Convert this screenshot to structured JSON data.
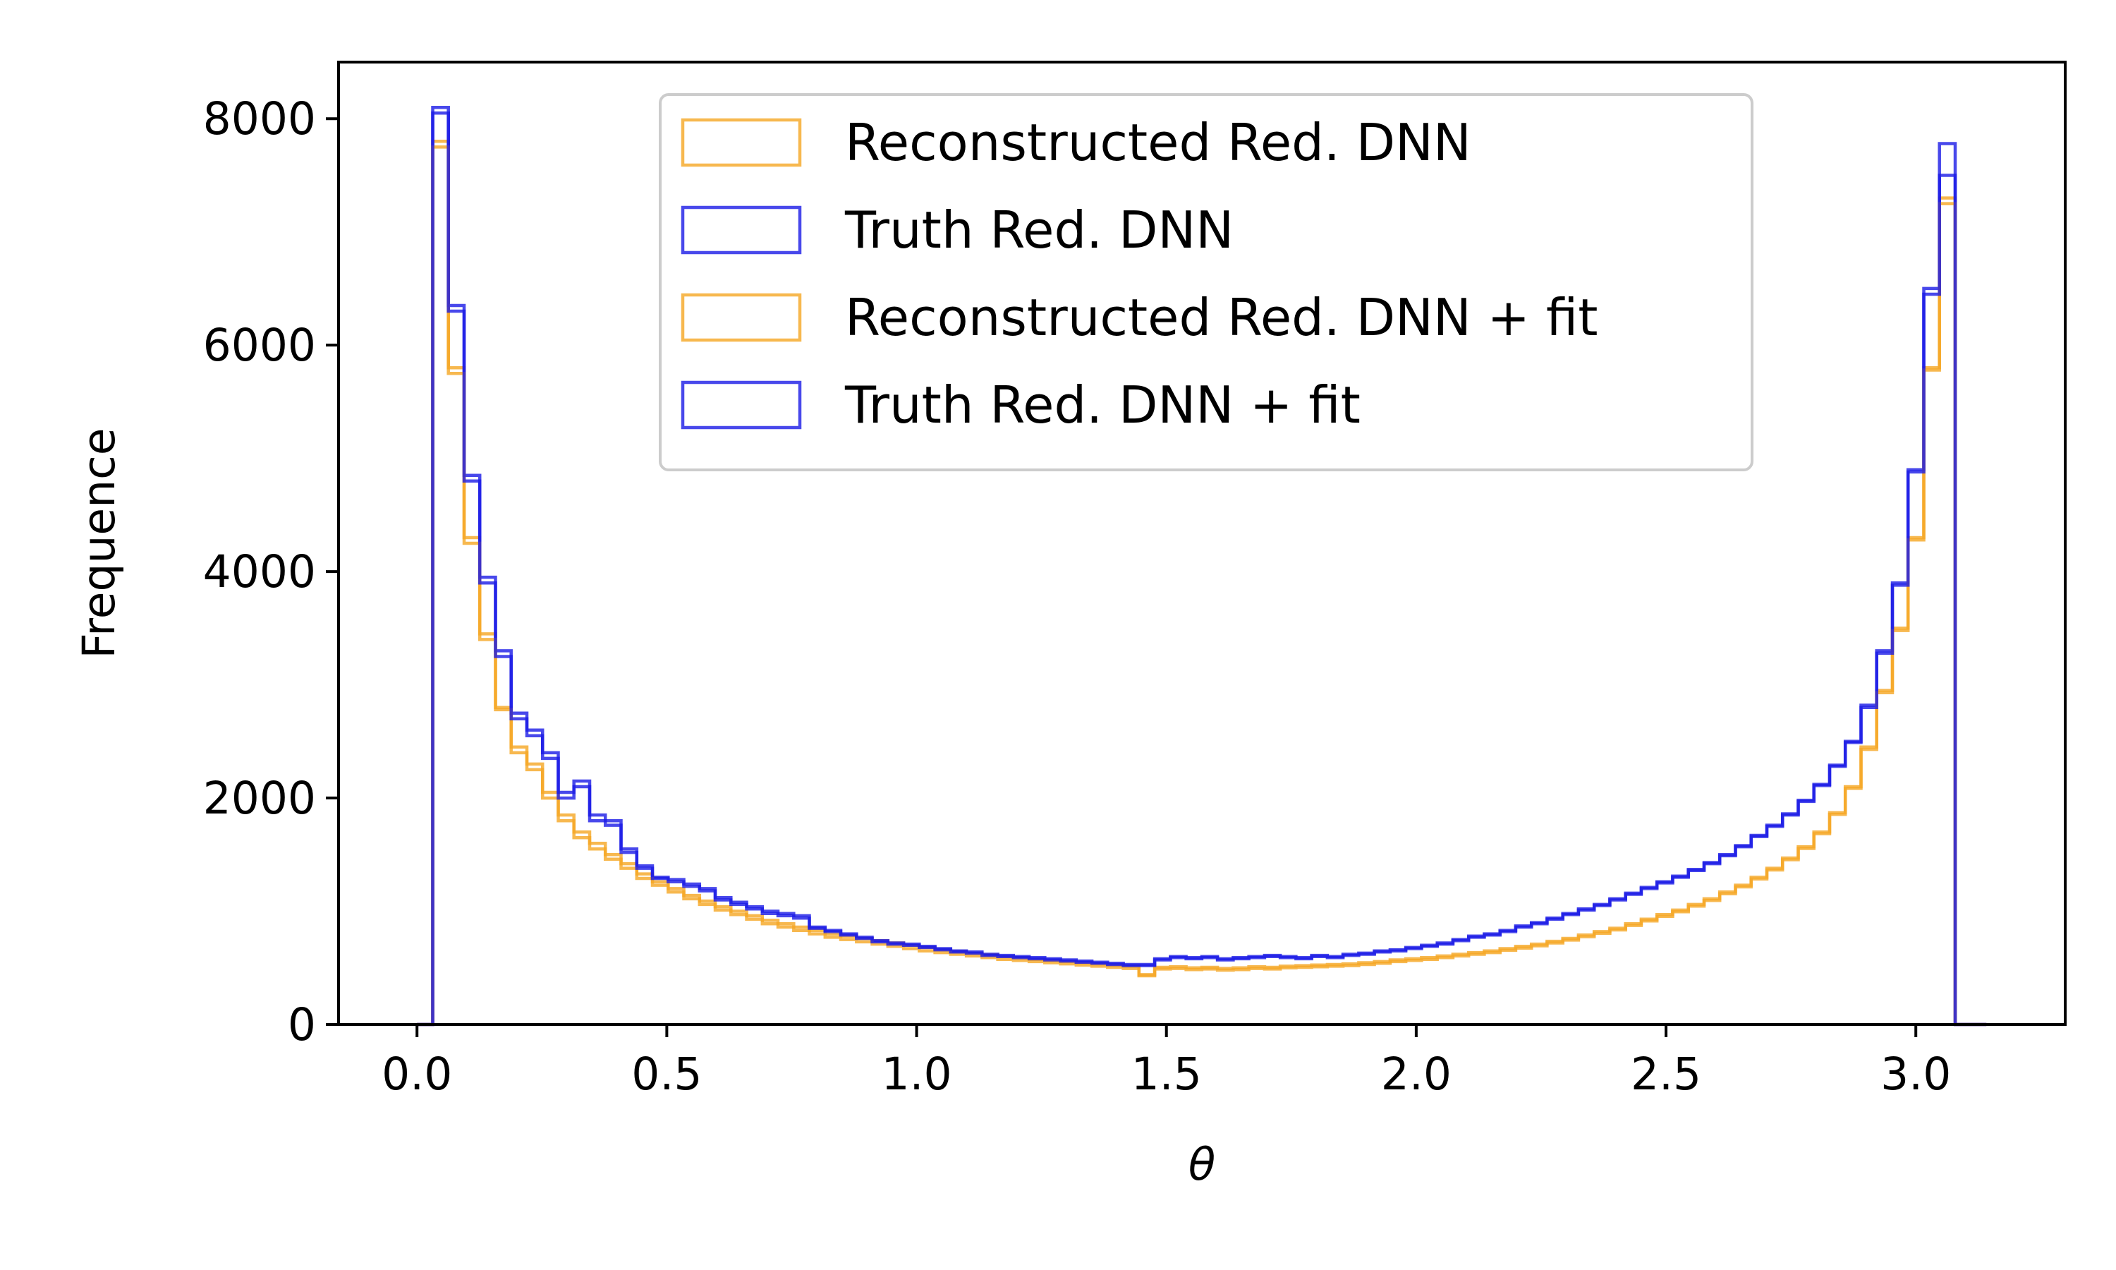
{
  "chart_data": {
    "type": "histogram-step",
    "xlabel": "θ",
    "ylabel": "Frequence",
    "xlim": [
      -0.157,
      3.299
    ],
    "ylim": [
      0,
      8500
    ],
    "xticks": [
      {
        "value": 0.0,
        "label": "0.0"
      },
      {
        "value": 0.5,
        "label": "0.5"
      },
      {
        "value": 1.0,
        "label": "1.0"
      },
      {
        "value": 1.5,
        "label": "1.5"
      },
      {
        "value": 2.0,
        "label": "2.0"
      },
      {
        "value": 2.5,
        "label": "2.5"
      },
      {
        "value": 3.0,
        "label": "3.0"
      }
    ],
    "yticks": [
      {
        "value": 0,
        "label": "0"
      },
      {
        "value": 2000,
        "label": "2000"
      },
      {
        "value": 4000,
        "label": "4000"
      },
      {
        "value": 6000,
        "label": "6000"
      },
      {
        "value": 8000,
        "label": "8000"
      }
    ],
    "grid": false,
    "legend_position": "top-center",
    "bins": {
      "start": 0.0,
      "end": 3.1416,
      "count": 100
    },
    "series": [
      {
        "name": "Reconstructed Red. DNN",
        "color": "#f5a623",
        "values": [
          0,
          7800,
          5800,
          4300,
          3450,
          2800,
          2450,
          2300,
          2050,
          1850,
          1700,
          1600,
          1500,
          1420,
          1330,
          1260,
          1200,
          1140,
          1090,
          1040,
          1000,
          960,
          920,
          890,
          860,
          830,
          800,
          780,
          760,
          740,
          720,
          700,
          680,
          660,
          645,
          630,
          615,
          600,
          590,
          575,
          565,
          555,
          545,
          535,
          525,
          515,
          440,
          505,
          510,
          500,
          505,
          495,
          500,
          510,
          505,
          515,
          520,
          525,
          530,
          535,
          545,
          555,
          570,
          580,
          590,
          605,
          620,
          635,
          650,
          670,
          690,
          710,
          735,
          760,
          790,
          820,
          850,
          890,
          930,
          970,
          1010,
          1060,
          1110,
          1170,
          1230,
          1300,
          1380,
          1470,
          1570,
          1700,
          1870,
          2100,
          2450,
          2950,
          3500,
          4300,
          5800,
          7300,
          0,
          0
        ]
      },
      {
        "name": "Truth Red. DNN",
        "color": "#1a1ae6",
        "values": [
          0,
          8100,
          6350,
          4850,
          3950,
          3300,
          2750,
          2600,
          2400,
          2050,
          2150,
          1850,
          1800,
          1550,
          1400,
          1300,
          1280,
          1240,
          1200,
          1120,
          1080,
          1040,
          1000,
          980,
          960,
          860,
          830,
          800,
          770,
          740,
          720,
          710,
          690,
          670,
          650,
          640,
          620,
          610,
          600,
          590,
          580,
          570,
          560,
          550,
          540,
          530,
          530,
          580,
          600,
          590,
          600,
          580,
          590,
          600,
          610,
          600,
          590,
          610,
          600,
          620,
          630,
          650,
          660,
          680,
          700,
          720,
          750,
          780,
          800,
          830,
          870,
          900,
          940,
          980,
          1020,
          1060,
          1110,
          1160,
          1210,
          1260,
          1310,
          1370,
          1430,
          1500,
          1580,
          1670,
          1760,
          1860,
          1980,
          2120,
          2290,
          2500,
          2820,
          3300,
          3900,
          4900,
          6500,
          7780,
          0,
          0
        ]
      },
      {
        "name": "Reconstructed Red. DNN + fit",
        "color": "#f5a623",
        "values": [
          0,
          7750,
          5750,
          4250,
          3400,
          2780,
          2400,
          2250,
          2000,
          1800,
          1650,
          1550,
          1460,
          1380,
          1290,
          1230,
          1170,
          1110,
          1060,
          1010,
          970,
          930,
          890,
          860,
          830,
          800,
          770,
          750,
          730,
          710,
          690,
          670,
          650,
          635,
          620,
          605,
          590,
          575,
          565,
          555,
          545,
          535,
          525,
          515,
          505,
          495,
          430,
          490,
          495,
          485,
          490,
          480,
          485,
          495,
          490,
          500,
          505,
          510,
          515,
          520,
          530,
          540,
          555,
          565,
          575,
          590,
          605,
          620,
          635,
          655,
          675,
          695,
          720,
          745,
          775,
          805,
          835,
          875,
          915,
          955,
          995,
          1045,
          1095,
          1155,
          1215,
          1285,
          1365,
          1455,
          1555,
          1685,
          1855,
          2085,
          2430,
          2930,
          3480,
          4280,
          5780,
          7250,
          0,
          0
        ]
      },
      {
        "name": "Truth Red. DNN + fit",
        "color": "#1a1ae6",
        "values": [
          0,
          8050,
          6300,
          4800,
          3900,
          3250,
          2700,
          2550,
          2350,
          2000,
          2100,
          1800,
          1760,
          1520,
          1380,
          1290,
          1260,
          1220,
          1180,
          1100,
          1060,
          1020,
          980,
          960,
          940,
          850,
          820,
          790,
          760,
          730,
          710,
          700,
          680,
          660,
          640,
          630,
          610,
          600,
          590,
          580,
          570,
          560,
          550,
          540,
          530,
          520,
          520,
          570,
          590,
          580,
          590,
          570,
          580,
          590,
          600,
          590,
          580,
          600,
          590,
          610,
          620,
          640,
          650,
          670,
          690,
          710,
          740,
          770,
          790,
          820,
          860,
          890,
          930,
          970,
          1010,
          1050,
          1100,
          1150,
          1200,
          1250,
          1300,
          1360,
          1420,
          1490,
          1570,
          1660,
          1750,
          1850,
          1970,
          2110,
          2280,
          2490,
          2800,
          3280,
          3880,
          4880,
          6450,
          7500,
          0,
          0
        ]
      }
    ]
  }
}
